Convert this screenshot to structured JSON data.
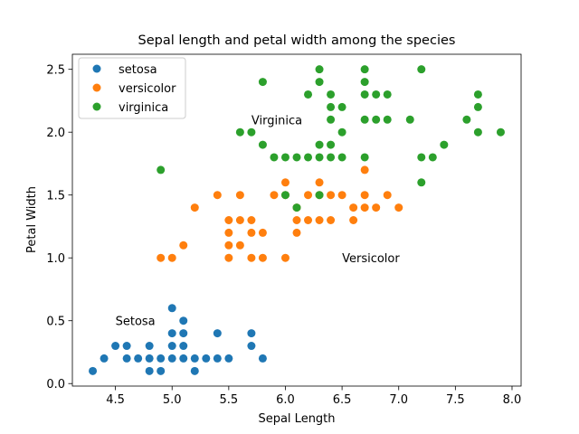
{
  "chart_data": {
    "type": "scatter",
    "title": "Sepal length and petal width among the species",
    "xlabel": "Sepal Length",
    "ylabel": "Petal Width",
    "xlim": [
      4.12,
      8.08
    ],
    "ylim": [
      -0.02,
      2.62
    ],
    "xticks": [
      4.5,
      5.0,
      5.5,
      6.0,
      6.5,
      7.0,
      7.5,
      8.0
    ],
    "xtick_labels": [
      "4.5",
      "5.0",
      "5.5",
      "6.0",
      "6.5",
      "7.0",
      "7.5",
      "8.0"
    ],
    "yticks": [
      0.0,
      0.5,
      1.0,
      1.5,
      2.0,
      2.5
    ],
    "ytick_labels": [
      "0.0",
      "0.5",
      "1.0",
      "1.5",
      "2.0",
      "2.5"
    ],
    "legend_placement": "top-left",
    "grid": false,
    "series": [
      {
        "name": "setosa",
        "color": "#1f77b4",
        "points": [
          [
            4.3,
            0.1
          ],
          [
            4.4,
            0.2
          ],
          [
            4.5,
            0.3
          ],
          [
            4.6,
            0.3
          ],
          [
            4.6,
            0.2
          ],
          [
            4.7,
            0.2
          ],
          [
            4.8,
            0.1
          ],
          [
            4.8,
            0.2
          ],
          [
            4.8,
            0.3
          ],
          [
            4.9,
            0.1
          ],
          [
            4.9,
            0.2
          ],
          [
            5.0,
            0.2
          ],
          [
            5.0,
            0.3
          ],
          [
            5.0,
            0.4
          ],
          [
            5.0,
            0.6
          ],
          [
            5.1,
            0.2
          ],
          [
            5.1,
            0.3
          ],
          [
            5.1,
            0.4
          ],
          [
            5.1,
            0.5
          ],
          [
            5.2,
            0.1
          ],
          [
            5.2,
            0.2
          ],
          [
            5.3,
            0.2
          ],
          [
            5.4,
            0.2
          ],
          [
            5.4,
            0.4
          ],
          [
            5.5,
            0.2
          ],
          [
            5.7,
            0.3
          ],
          [
            5.7,
            0.4
          ],
          [
            5.8,
            0.2
          ]
        ]
      },
      {
        "name": "versicolor",
        "color": "#ff7f0e",
        "points": [
          [
            4.9,
            1.0
          ],
          [
            5.0,
            1.0
          ],
          [
            5.1,
            1.1
          ],
          [
            5.2,
            1.4
          ],
          [
            5.4,
            1.5
          ],
          [
            5.5,
            1.0
          ],
          [
            5.5,
            1.1
          ],
          [
            5.5,
            1.2
          ],
          [
            5.5,
            1.3
          ],
          [
            5.6,
            1.1
          ],
          [
            5.6,
            1.3
          ],
          [
            5.6,
            1.5
          ],
          [
            5.7,
            1.0
          ],
          [
            5.7,
            1.2
          ],
          [
            5.7,
            1.3
          ],
          [
            5.8,
            1.0
          ],
          [
            5.8,
            1.2
          ],
          [
            5.9,
            1.5
          ],
          [
            6.0,
            1.0
          ],
          [
            6.0,
            1.5
          ],
          [
            6.0,
            1.6
          ],
          [
            6.1,
            1.2
          ],
          [
            6.1,
            1.3
          ],
          [
            6.1,
            1.4
          ],
          [
            6.2,
            1.3
          ],
          [
            6.2,
            1.5
          ],
          [
            6.3,
            1.3
          ],
          [
            6.3,
            1.5
          ],
          [
            6.3,
            1.6
          ],
          [
            6.4,
            1.3
          ],
          [
            6.4,
            1.5
          ],
          [
            6.5,
            1.5
          ],
          [
            6.6,
            1.3
          ],
          [
            6.6,
            1.4
          ],
          [
            6.7,
            1.4
          ],
          [
            6.7,
            1.5
          ],
          [
            6.7,
            1.7
          ],
          [
            6.8,
            1.4
          ],
          [
            6.9,
            1.5
          ],
          [
            7.0,
            1.4
          ]
        ]
      },
      {
        "name": "virginica",
        "color": "#2ca02c",
        "points": [
          [
            4.9,
            1.7
          ],
          [
            5.6,
            2.0
          ],
          [
            5.7,
            2.0
          ],
          [
            5.8,
            1.9
          ],
          [
            5.8,
            2.4
          ],
          [
            5.9,
            1.8
          ],
          [
            6.0,
            1.5
          ],
          [
            6.0,
            1.8
          ],
          [
            6.1,
            1.4
          ],
          [
            6.1,
            1.8
          ],
          [
            6.2,
            1.8
          ],
          [
            6.2,
            2.3
          ],
          [
            6.3,
            1.5
          ],
          [
            6.3,
            1.8
          ],
          [
            6.3,
            1.9
          ],
          [
            6.3,
            2.4
          ],
          [
            6.3,
            2.5
          ],
          [
            6.4,
            1.8
          ],
          [
            6.4,
            1.9
          ],
          [
            6.4,
            2.1
          ],
          [
            6.4,
            2.2
          ],
          [
            6.4,
            2.3
          ],
          [
            6.5,
            1.8
          ],
          [
            6.5,
            2.0
          ],
          [
            6.5,
            2.2
          ],
          [
            6.7,
            1.8
          ],
          [
            6.7,
            2.1
          ],
          [
            6.7,
            2.3
          ],
          [
            6.7,
            2.4
          ],
          [
            6.7,
            2.5
          ],
          [
            6.8,
            2.1
          ],
          [
            6.8,
            2.3
          ],
          [
            6.9,
            2.1
          ],
          [
            6.9,
            2.3
          ],
          [
            7.1,
            2.1
          ],
          [
            7.2,
            1.6
          ],
          [
            7.2,
            1.8
          ],
          [
            7.2,
            2.5
          ],
          [
            7.3,
            1.8
          ],
          [
            7.4,
            1.9
          ],
          [
            7.6,
            2.1
          ],
          [
            7.7,
            2.0
          ],
          [
            7.7,
            2.2
          ],
          [
            7.7,
            2.3
          ],
          [
            7.9,
            2.0
          ]
        ]
      }
    ],
    "annotations": [
      {
        "text": "Setosa",
        "x": 4.5,
        "y": 0.5
      },
      {
        "text": "Versicolor",
        "x": 6.5,
        "y": 1.0
      },
      {
        "text": "Virginica",
        "x": 5.7,
        "y": 2.1
      }
    ]
  }
}
